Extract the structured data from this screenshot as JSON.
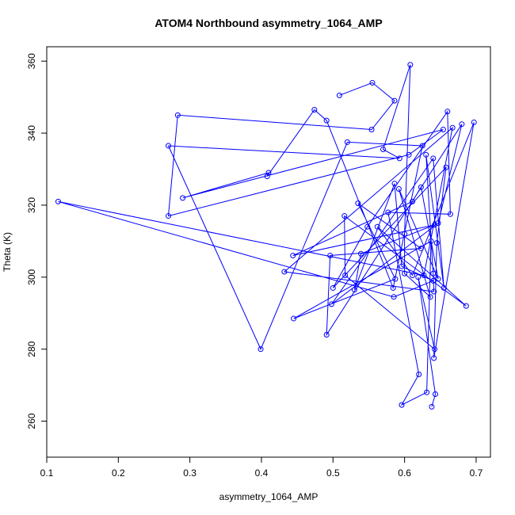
{
  "chart_data": {
    "type": "line",
    "title": "ATOM4 Northbound asymmetry_1064_AMP",
    "xlabel": "asymmetry_1064_AMP",
    "ylabel": "Theta (K)",
    "xlim": [
      0.1,
      0.72
    ],
    "ylim": [
      250,
      364
    ],
    "xticks": [
      0.1,
      0.2,
      0.3,
      0.4,
      0.5,
      0.6,
      0.7
    ],
    "yticks": [
      260,
      280,
      300,
      320,
      340,
      360
    ],
    "xtick_labels": [
      "0.1",
      "0.2",
      "0.3",
      "0.4",
      "0.5",
      "0.6",
      "0.7"
    ],
    "ytick_labels": [
      "260",
      "280",
      "300",
      "320",
      "340",
      "360"
    ],
    "color": "#0000ff",
    "marker": "open-circle",
    "grid": false,
    "series": [
      {
        "x": [
          0.509,
          0.555,
          0.586,
          0.554,
          0.283,
          0.27,
          0.606,
          0.654,
          0.29,
          0.41,
          0.408,
          0.474,
          0.491,
          0.584,
          0.625,
          0.52,
          0.399,
          0.27,
          0.593,
          0.57,
          0.608,
          0.6,
          0.6,
          0.636,
          0.592,
          0.647,
          0.623,
          0.611,
          0.444,
          0.642,
          0.539,
          0.53,
          0.586,
          0.596,
          0.64,
          0.585,
          0.116,
          0.627,
          0.667,
          0.432,
          0.641,
          0.64,
          0.63,
          0.655,
          0.64,
          0.498,
          0.647,
          0.68,
          0.491,
          0.496,
          0.623,
          0.535,
          0.587,
          0.445,
          0.637,
          0.631,
          0.596,
          0.62,
          0.577,
          0.664,
          0.66,
          0.548,
          0.5,
          0.658,
          0.645,
          0.641,
          0.697,
          0.611,
          0.562,
          0.686,
          0.516,
          0.517,
          0.642,
          0.619,
          0.643,
          0.638
        ],
        "y": [
          350.5,
          354,
          349,
          341,
          345,
          317,
          334,
          341,
          322,
          329,
          328,
          346.5,
          343.5,
          297,
          336.5,
          337.5,
          280,
          336.5,
          333,
          335.5,
          359,
          312,
          301,
          294.5,
          324.5,
          299.5,
          325,
          321,
          306,
          314.5,
          306.5,
          296.5,
          326,
          303,
          299,
          294.5,
          321,
          300.5,
          341.5,
          301.5,
          296,
          301,
          334,
          297,
          333,
          292.5,
          315,
          342.5,
          284,
          306,
          308,
          320.5,
          299.5,
          288.5,
          310,
          268,
          264.5,
          273,
          318,
          317.5,
          346,
          314,
          297,
          330.5,
          309.5,
          277.5,
          343,
          300.5,
          314,
          292,
          317,
          300.5,
          280,
          300,
          267.5,
          264
        ]
      }
    ]
  }
}
